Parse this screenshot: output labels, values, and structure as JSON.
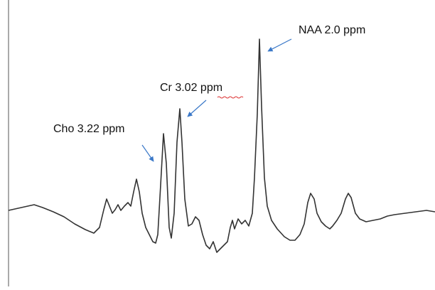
{
  "annotations": {
    "naa": "NAA 2.0 ppm",
    "cr": "Cr 3.02 ppm",
    "cho": "Cho 3.22 ppm"
  }
}
